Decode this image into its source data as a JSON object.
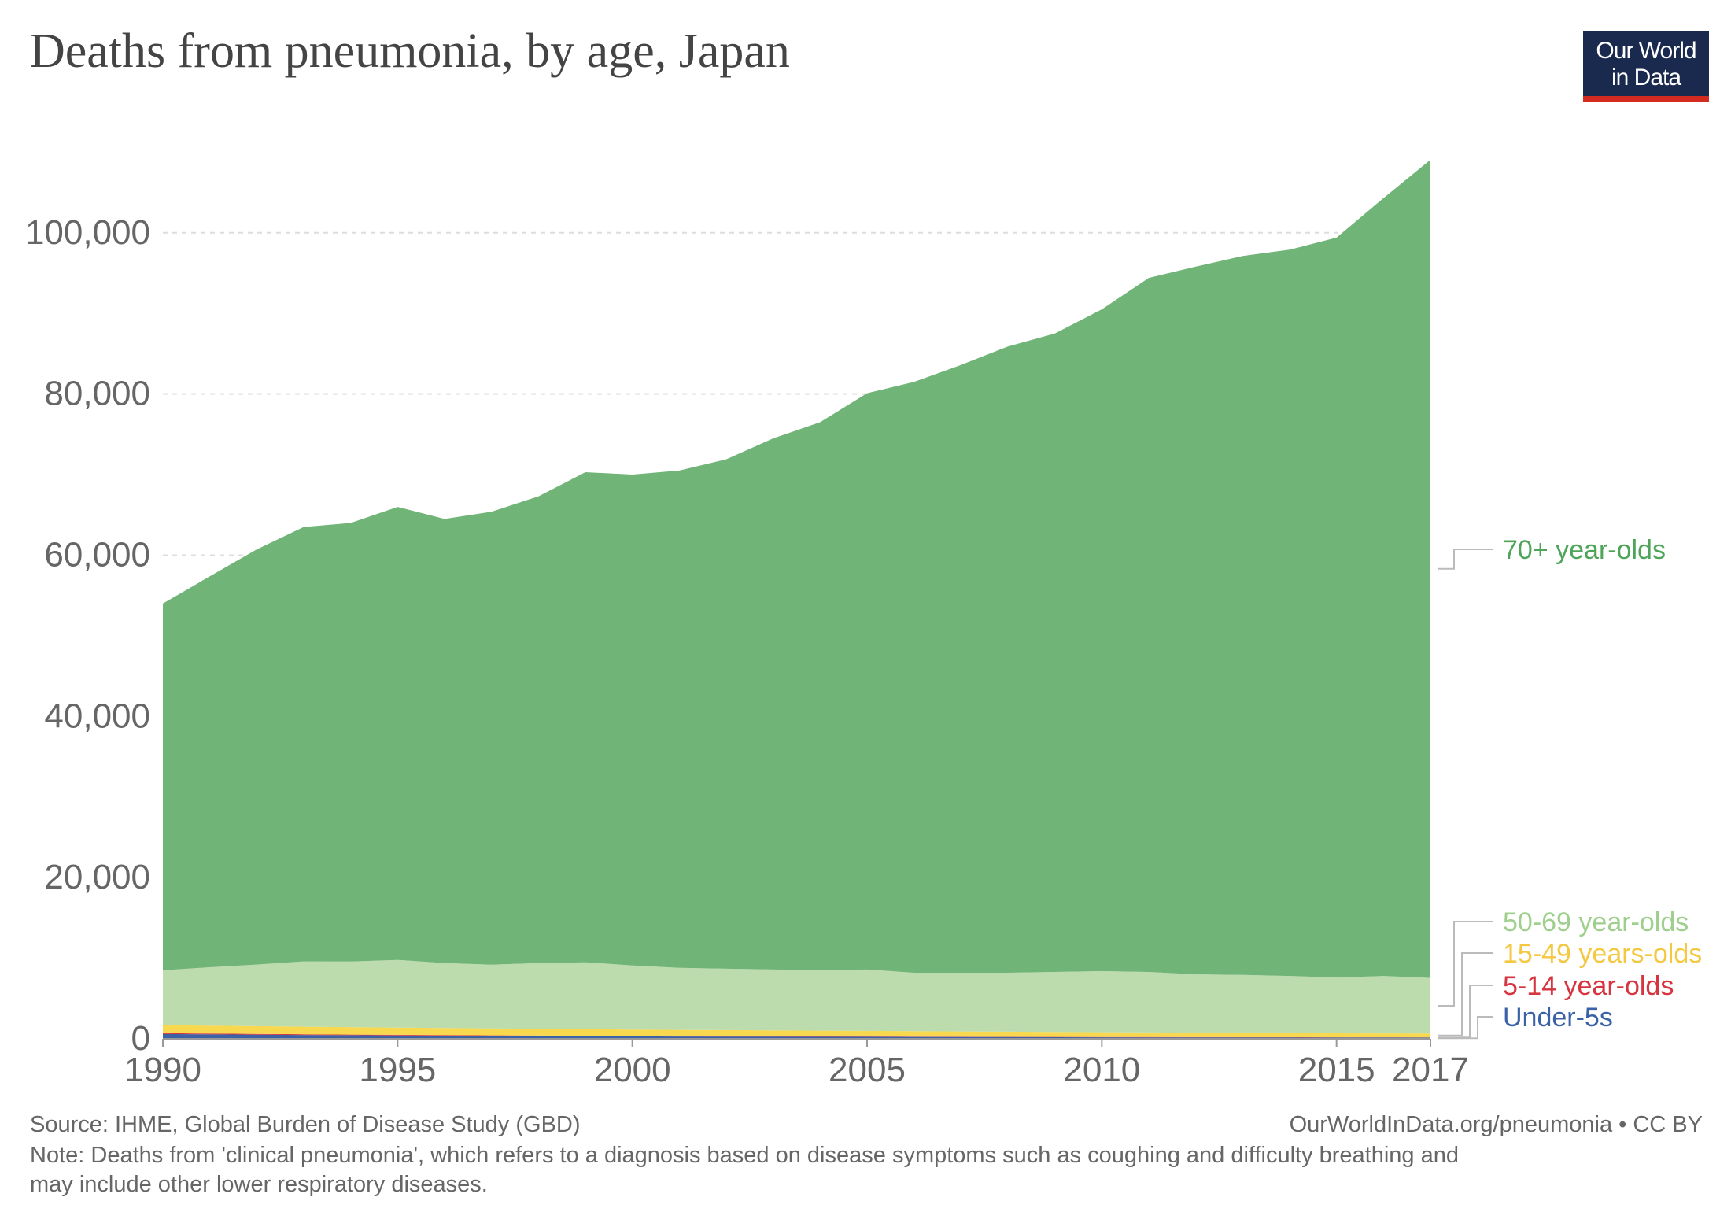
{
  "header": {
    "title": "Deaths from pneumonia, by age, Japan",
    "logo_line1": "Our World",
    "logo_line2": "in Data"
  },
  "footer": {
    "source": "Source: IHME, Global Burden of Disease Study (GBD)",
    "url_credit": "OurWorldInData.org/pneumonia • CC BY",
    "note_line1": "Note: Deaths from 'clinical pneumonia', which refers to a diagnosis based on disease symptoms such as coughing and difficulty breathing and",
    "note_line2": "may include other lower respiratory diseases."
  },
  "colors": {
    "under5": "#3b62a6",
    "age5_14": "#d6343f",
    "age15_49": "#f7d84f",
    "age50_69": "#bcdcae",
    "age70plus": "#71b477",
    "grid": "#dddddd",
    "axis_text": "#666666"
  },
  "chart_data": {
    "type": "area",
    "stacked": true,
    "title": "Deaths from pneumonia, by age, Japan",
    "x": [
      1990,
      1991,
      1992,
      1993,
      1994,
      1995,
      1996,
      1997,
      1998,
      1999,
      2000,
      2001,
      2002,
      2003,
      2004,
      2005,
      2006,
      2007,
      2008,
      2009,
      2010,
      2011,
      2012,
      2013,
      2014,
      2015,
      2016,
      2017
    ],
    "xticks": [
      1990,
      1995,
      2000,
      2005,
      2010,
      2015,
      2017
    ],
    "yticks": [
      0,
      20000,
      40000,
      60000,
      80000,
      100000
    ],
    "ytick_labels": [
      "0",
      "20,000",
      "40,000",
      "60,000",
      "80,000",
      "100,000"
    ],
    "ylim": [
      0,
      110000
    ],
    "xlim": [
      1990,
      2017
    ],
    "grid": "horizontal dashed",
    "legend_placement": "right, inline labels",
    "series": [
      {
        "name": "Under-5s",
        "color": "#3b62a6",
        "values": [
          600,
          560,
          520,
          480,
          450,
          420,
          390,
          360,
          340,
          320,
          300,
          280,
          270,
          260,
          250,
          240,
          230,
          220,
          210,
          200,
          190,
          180,
          175,
          170,
          165,
          160,
          155,
          150
        ]
      },
      {
        "name": "5-14 year-olds",
        "color": "#d6343f",
        "values": [
          100,
          95,
          90,
          85,
          80,
          75,
          70,
          65,
          60,
          58,
          55,
          52,
          50,
          48,
          46,
          44,
          42,
          40,
          38,
          36,
          34,
          32,
          30,
          29,
          28,
          27,
          26,
          25
        ]
      },
      {
        "name": "15-49 years-olds",
        "color": "#f7d84f",
        "values": [
          1000,
          980,
          960,
          940,
          920,
          900,
          880,
          860,
          840,
          820,
          800,
          780,
          760,
          740,
          720,
          700,
          680,
          660,
          640,
          620,
          600,
          580,
          560,
          540,
          520,
          500,
          490,
          480
        ]
      },
      {
        "name": "50-69 year-olds",
        "color": "#bcdcae",
        "values": [
          6800,
          7250,
          7650,
          8100,
          8150,
          8400,
          8060,
          7915,
          8160,
          8300,
          7945,
          7690,
          7620,
          7550,
          7485,
          7615,
          7250,
          7280,
          7310,
          7445,
          7575,
          7510,
          7235,
          7190,
          7090,
          6915,
          7130,
          6900
        ]
      },
      {
        "name": "70+ year-olds",
        "color": "#71b477",
        "values": [
          45500,
          48500,
          51500,
          53900,
          54400,
          56200,
          55100,
          56200,
          57900,
          60800,
          60900,
          61700,
          63200,
          65900,
          68000,
          71500,
          73300,
          75400,
          77700,
          79200,
          82100,
          86100,
          87800,
          89200,
          90100,
          91800,
          96500,
          101500
        ]
      }
    ]
  }
}
